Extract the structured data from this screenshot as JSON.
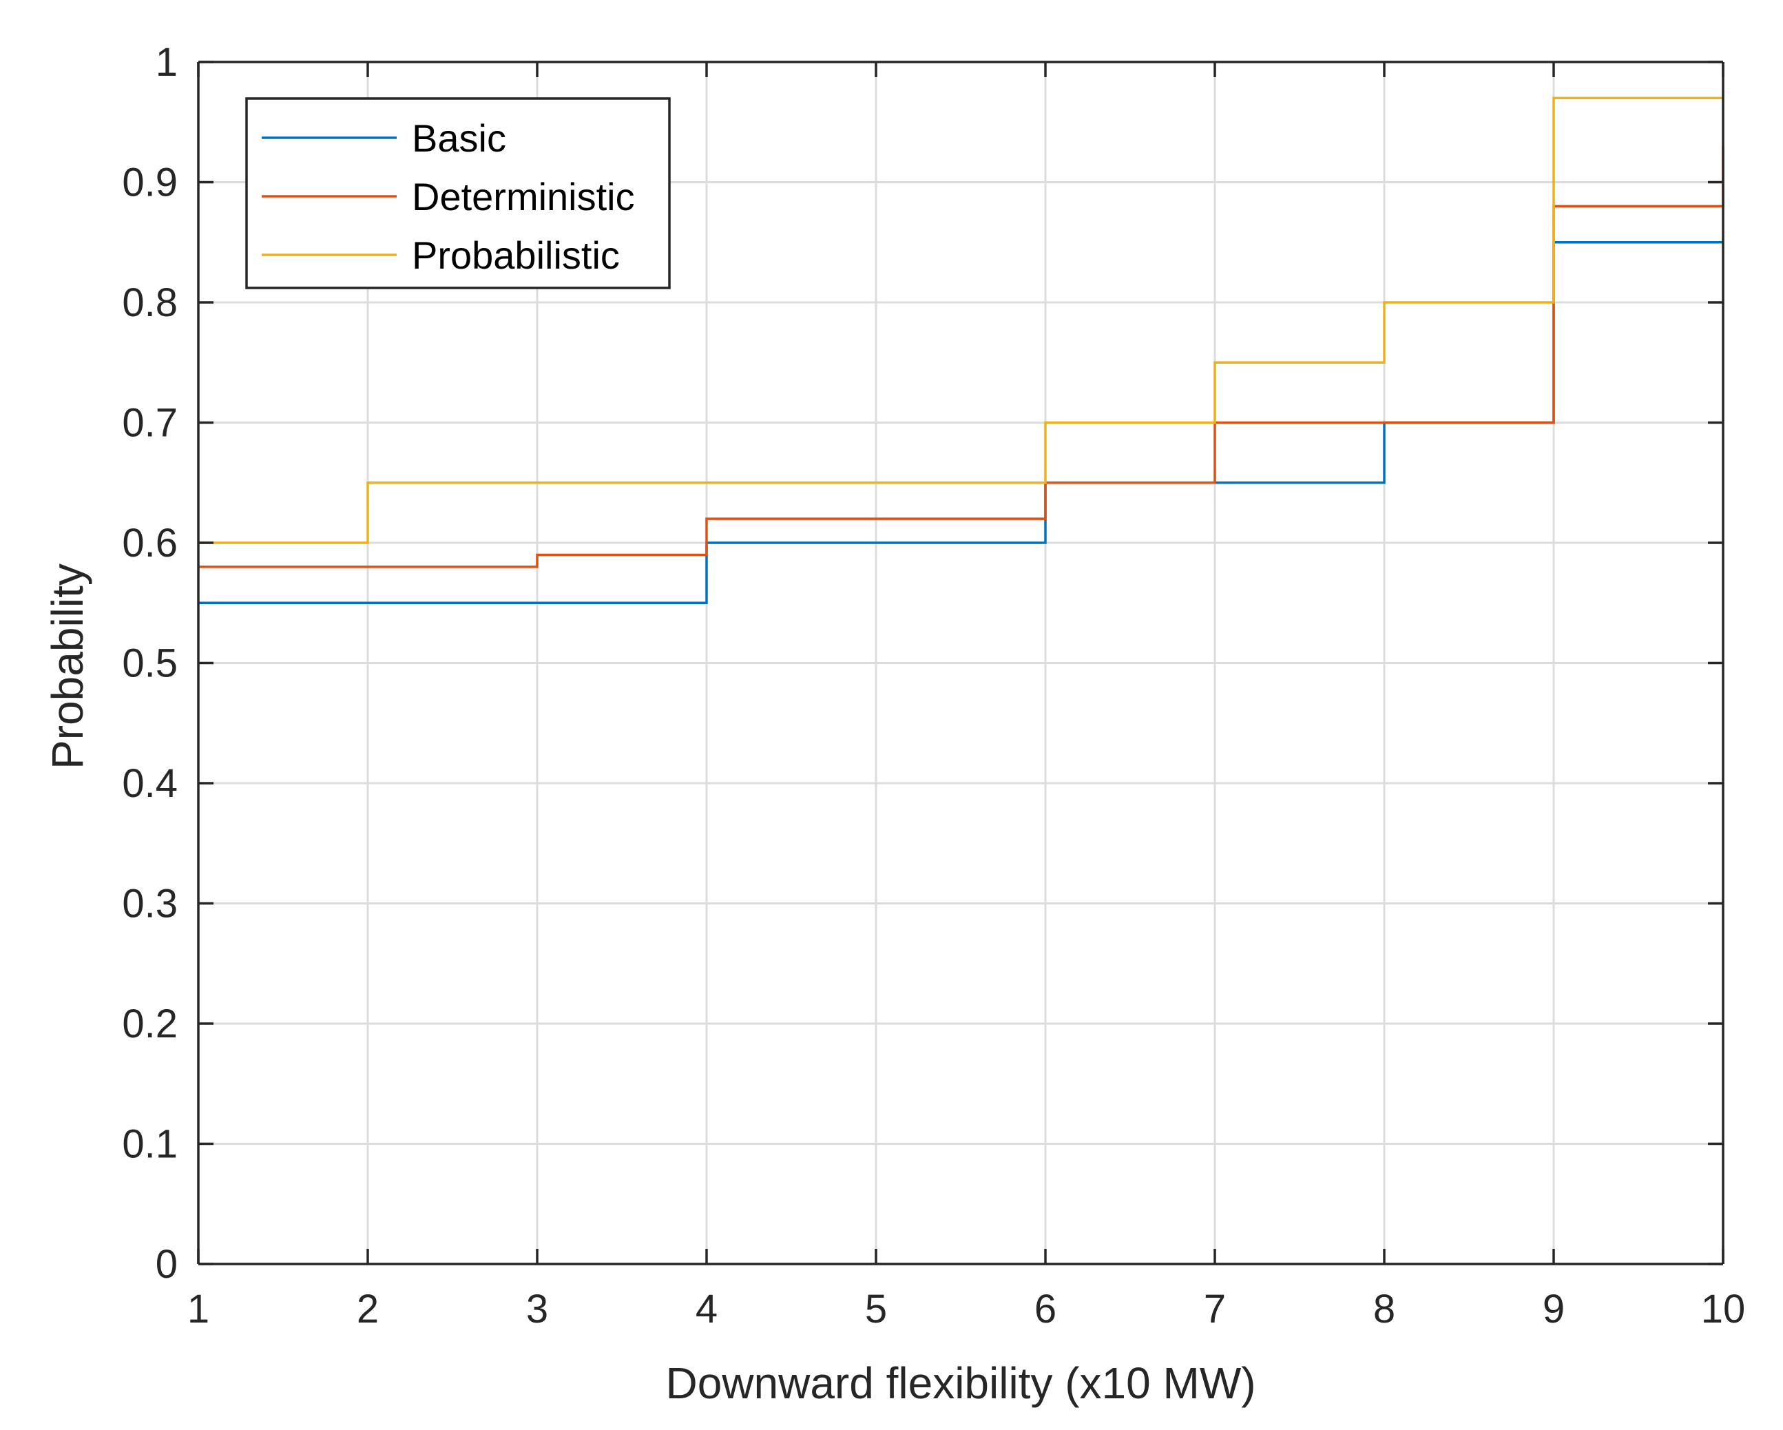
{
  "chart_data": {
    "type": "line",
    "style": "stairs",
    "xlabel": "Downward flexibility (x10 MW)",
    "ylabel": "Probability",
    "xlim": [
      1,
      10
    ],
    "ylim": [
      0,
      1
    ],
    "xticks": [
      1,
      2,
      3,
      4,
      5,
      6,
      7,
      8,
      9,
      10
    ],
    "yticks": [
      0,
      0.1,
      0.2,
      0.3,
      0.4,
      0.5,
      0.6,
      0.7,
      0.8,
      0.9,
      1
    ],
    "xtick_labels": [
      "1",
      "2",
      "3",
      "4",
      "5",
      "6",
      "7",
      "8",
      "9",
      "10"
    ],
    "ytick_labels": [
      "0",
      "0.1",
      "0.2",
      "0.3",
      "0.4",
      "0.5",
      "0.6",
      "0.7",
      "0.8",
      "0.9",
      "1"
    ],
    "grid": true,
    "legend_position": "top-left",
    "series": [
      {
        "name": "Basic",
        "color": "#0072BD",
        "x": [
          1,
          2,
          3,
          4,
          5,
          6,
          7,
          8,
          9,
          10
        ],
        "values": [
          0.55,
          0.55,
          0.55,
          0.6,
          0.6,
          0.65,
          0.65,
          0.7,
          0.85,
          0.85
        ]
      },
      {
        "name": "Deterministic",
        "color": "#D95319",
        "x": [
          1,
          2,
          3,
          4,
          5,
          6,
          7,
          8,
          9,
          10
        ],
        "values": [
          0.58,
          0.58,
          0.59,
          0.62,
          0.62,
          0.65,
          0.7,
          0.7,
          0.88,
          0.93
        ]
      },
      {
        "name": "Probabilistic",
        "color": "#EDB120",
        "x": [
          1,
          2,
          3,
          4,
          5,
          6,
          7,
          8,
          9,
          10
        ],
        "values": [
          0.6,
          0.65,
          0.65,
          0.65,
          0.65,
          0.7,
          0.75,
          0.8,
          0.97,
          0.97
        ]
      }
    ]
  }
}
